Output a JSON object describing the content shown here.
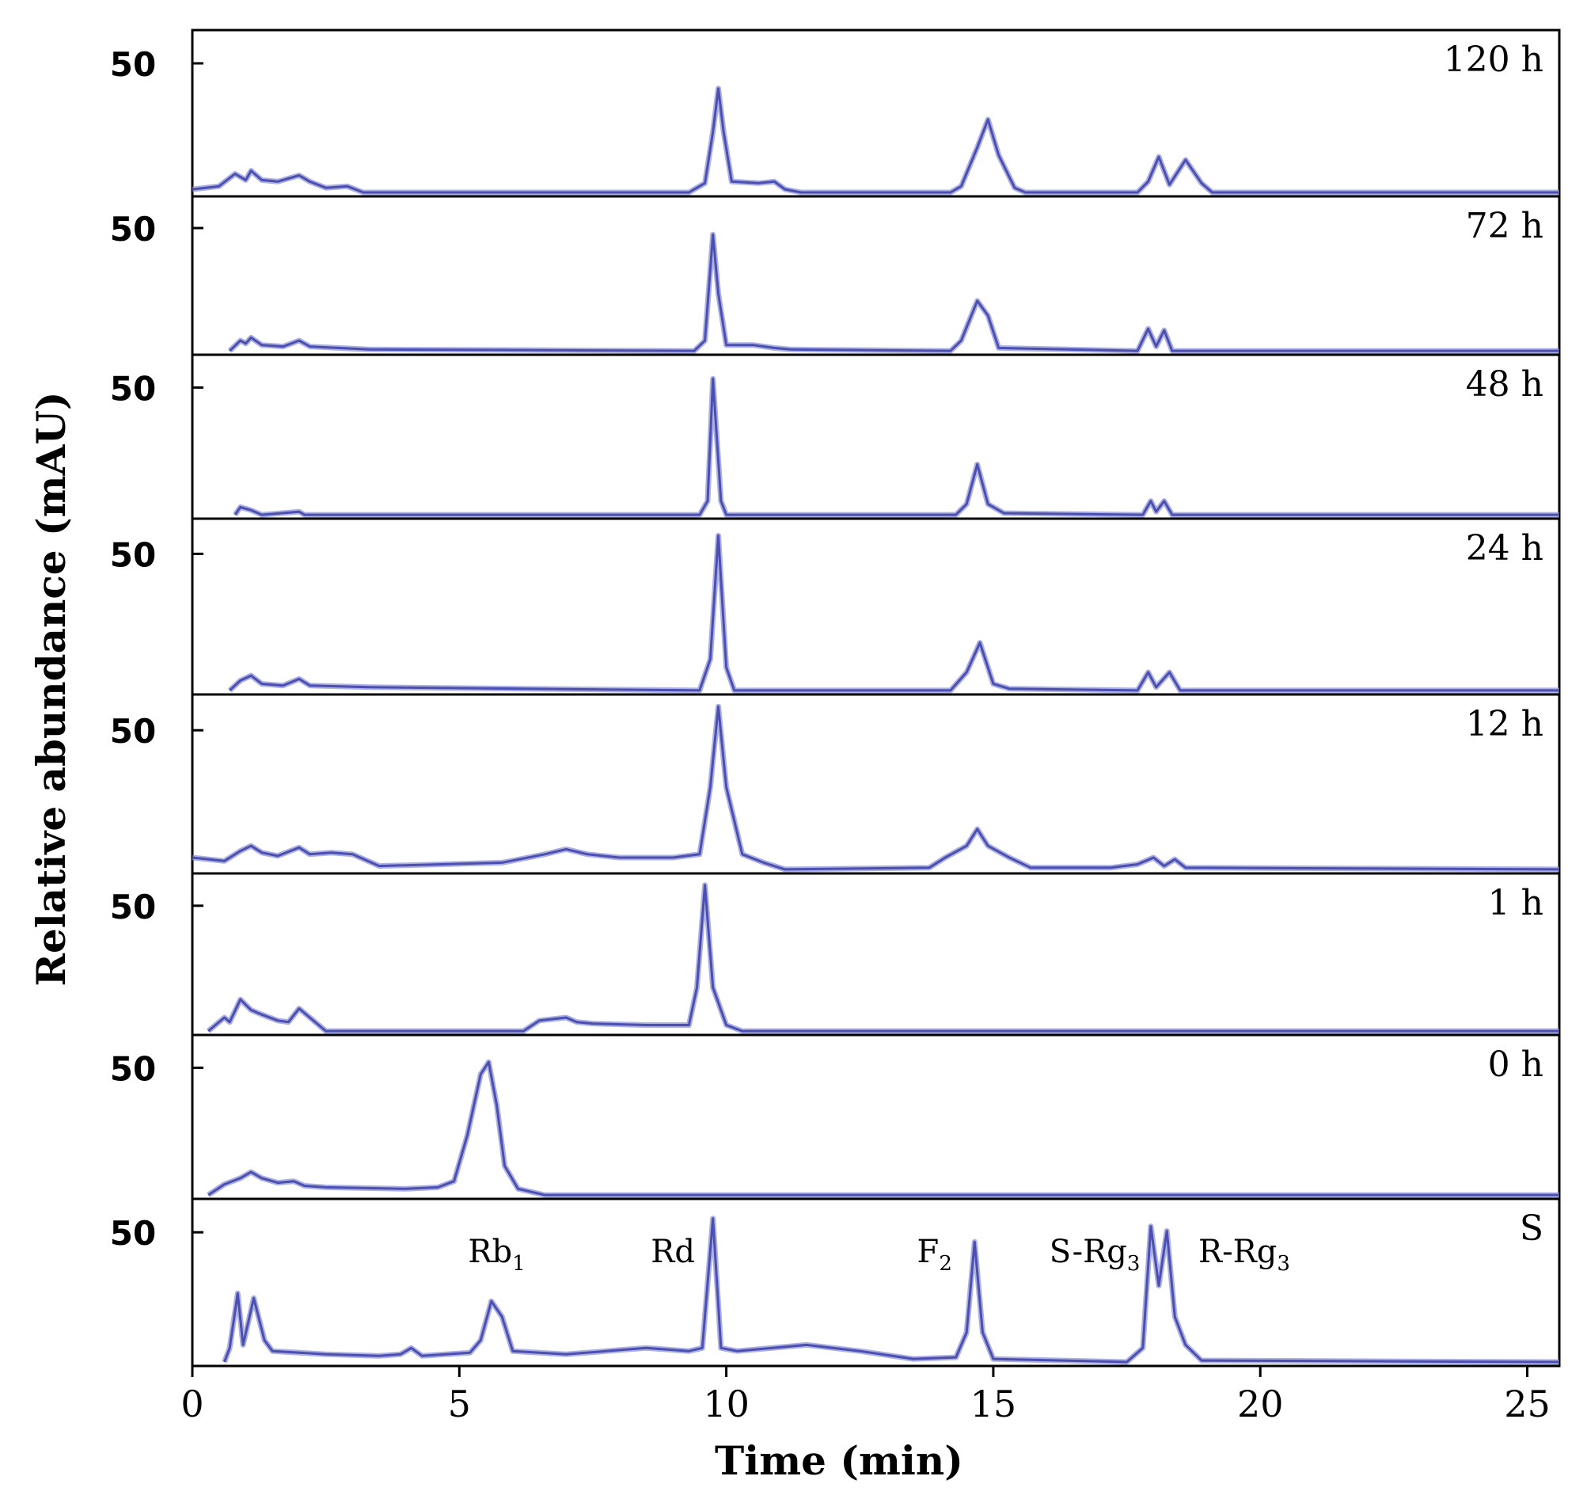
{
  "chart_data": {
    "type": "line",
    "xlabel": "Time (min)",
    "ylabel": "Relative abundance (mAU)",
    "xlim": [
      0,
      25.6
    ],
    "xticks": [
      0,
      5,
      10,
      15,
      20,
      25
    ],
    "ytick_label": "50",
    "colors": {
      "trace": "#4a4fb0",
      "trace_light": "#8a8fd6",
      "dark": "#11134a",
      "frame": "#000000"
    },
    "peak_labels": [
      {
        "text": "Rb",
        "sub": "1",
        "x": 5.7
      },
      {
        "text": "Rd",
        "sub": "",
        "x": 9.0
      },
      {
        "text": "F",
        "sub": "2",
        "x": 13.9
      },
      {
        "text": "S-Rg",
        "sub": "3",
        "x": 16.9
      },
      {
        "text": "R-Rg",
        "sub": "3",
        "x": 19.7
      }
    ],
    "panels": [
      {
        "label": "120 h",
        "trace": [
          [
            0,
            0.03
          ],
          [
            0.5,
            0.05
          ],
          [
            0.8,
            0.13
          ],
          [
            1.0,
            0.09
          ],
          [
            1.1,
            0.15
          ],
          [
            1.3,
            0.09
          ],
          [
            1.6,
            0.08
          ],
          [
            2.0,
            0.12
          ],
          [
            2.2,
            0.08
          ],
          [
            2.5,
            0.04
          ],
          [
            2.9,
            0.05
          ],
          [
            3.2,
            0.01
          ],
          [
            9.3,
            0.01
          ],
          [
            9.6,
            0.07
          ],
          [
            9.75,
            0.4
          ],
          [
            9.85,
            0.68
          ],
          [
            9.95,
            0.4
          ],
          [
            10.1,
            0.08
          ],
          [
            10.6,
            0.07
          ],
          [
            10.9,
            0.08
          ],
          [
            11.1,
            0.03
          ],
          [
            11.4,
            0.01
          ],
          [
            14.2,
            0.01
          ],
          [
            14.4,
            0.05
          ],
          [
            14.7,
            0.3
          ],
          [
            14.9,
            0.48
          ],
          [
            15.1,
            0.25
          ],
          [
            15.4,
            0.04
          ],
          [
            15.6,
            0.01
          ],
          [
            17.7,
            0.01
          ],
          [
            17.9,
            0.08
          ],
          [
            18.1,
            0.24
          ],
          [
            18.3,
            0.06
          ],
          [
            18.6,
            0.22
          ],
          [
            18.9,
            0.07
          ],
          [
            19.1,
            0.01
          ],
          [
            25.6,
            0.01
          ]
        ]
      },
      {
        "label": "72 h",
        "trace": [
          [
            0.7,
            0.01
          ],
          [
            0.9,
            0.08
          ],
          [
            1.0,
            0.06
          ],
          [
            1.1,
            0.1
          ],
          [
            1.3,
            0.05
          ],
          [
            1.7,
            0.04
          ],
          [
            2.0,
            0.08
          ],
          [
            2.2,
            0.04
          ],
          [
            3.3,
            0.02
          ],
          [
            9.4,
            0.01
          ],
          [
            9.6,
            0.08
          ],
          [
            9.75,
            0.8
          ],
          [
            9.85,
            0.4
          ],
          [
            10.0,
            0.05
          ],
          [
            10.5,
            0.05
          ],
          [
            10.9,
            0.03
          ],
          [
            11.2,
            0.02
          ],
          [
            14.2,
            0.01
          ],
          [
            14.4,
            0.08
          ],
          [
            14.7,
            0.35
          ],
          [
            14.9,
            0.25
          ],
          [
            15.1,
            0.03
          ],
          [
            17.7,
            0.01
          ],
          [
            17.9,
            0.16
          ],
          [
            18.05,
            0.04
          ],
          [
            18.2,
            0.15
          ],
          [
            18.35,
            0.01
          ],
          [
            25.6,
            0.01
          ]
        ]
      },
      {
        "label": "48 h",
        "trace": [
          [
            0.8,
            0.01
          ],
          [
            0.9,
            0.06
          ],
          [
            1.1,
            0.04
          ],
          [
            1.3,
            0.01
          ],
          [
            2.0,
            0.03
          ],
          [
            2.1,
            0.01
          ],
          [
            9.5,
            0.01
          ],
          [
            9.65,
            0.1
          ],
          [
            9.75,
            0.9
          ],
          [
            9.9,
            0.1
          ],
          [
            10.0,
            0.01
          ],
          [
            14.3,
            0.01
          ],
          [
            14.5,
            0.08
          ],
          [
            14.7,
            0.34
          ],
          [
            14.9,
            0.08
          ],
          [
            15.2,
            0.02
          ],
          [
            17.8,
            0.01
          ],
          [
            17.95,
            0.1
          ],
          [
            18.05,
            0.03
          ],
          [
            18.2,
            0.1
          ],
          [
            18.35,
            0.01
          ],
          [
            25.6,
            0.01
          ]
        ]
      },
      {
        "label": "24 h",
        "trace": [
          [
            0.7,
            0.01
          ],
          [
            0.9,
            0.07
          ],
          [
            1.1,
            0.1
          ],
          [
            1.3,
            0.05
          ],
          [
            1.7,
            0.04
          ],
          [
            2.0,
            0.08
          ],
          [
            2.2,
            0.04
          ],
          [
            3.3,
            0.03
          ],
          [
            9.5,
            0.01
          ],
          [
            9.7,
            0.2
          ],
          [
            9.85,
            0.95
          ],
          [
            10.0,
            0.15
          ],
          [
            10.15,
            0.01
          ],
          [
            14.2,
            0.01
          ],
          [
            14.5,
            0.12
          ],
          [
            14.75,
            0.3
          ],
          [
            15.0,
            0.05
          ],
          [
            15.3,
            0.02
          ],
          [
            17.7,
            0.01
          ],
          [
            17.9,
            0.12
          ],
          [
            18.05,
            0.03
          ],
          [
            18.3,
            0.12
          ],
          [
            18.5,
            0.01
          ],
          [
            25.6,
            0.01
          ]
        ]
      },
      {
        "label": "12 h",
        "trace": [
          [
            0,
            0.08
          ],
          [
            0.6,
            0.06
          ],
          [
            0.9,
            0.12
          ],
          [
            1.1,
            0.15
          ],
          [
            1.3,
            0.11
          ],
          [
            1.6,
            0.09
          ],
          [
            2.0,
            0.14
          ],
          [
            2.2,
            0.1
          ],
          [
            2.6,
            0.11
          ],
          [
            3.0,
            0.1
          ],
          [
            3.5,
            0.03
          ],
          [
            5.8,
            0.05
          ],
          [
            6.6,
            0.1
          ],
          [
            7.0,
            0.13
          ],
          [
            7.4,
            0.1
          ],
          [
            8.0,
            0.08
          ],
          [
            9.0,
            0.08
          ],
          [
            9.5,
            0.1
          ],
          [
            9.7,
            0.5
          ],
          [
            9.85,
            0.98
          ],
          [
            10.0,
            0.5
          ],
          [
            10.3,
            0.1
          ],
          [
            10.7,
            0.05
          ],
          [
            11.1,
            0.01
          ],
          [
            13.8,
            0.02
          ],
          [
            14.1,
            0.08
          ],
          [
            14.5,
            0.15
          ],
          [
            14.7,
            0.25
          ],
          [
            14.9,
            0.15
          ],
          [
            15.3,
            0.08
          ],
          [
            15.7,
            0.02
          ],
          [
            17.2,
            0.02
          ],
          [
            17.7,
            0.04
          ],
          [
            18.0,
            0.08
          ],
          [
            18.2,
            0.03
          ],
          [
            18.4,
            0.07
          ],
          [
            18.6,
            0.02
          ],
          [
            25.6,
            0.01
          ]
        ]
      },
      {
        "label": "1 h",
        "trace": [
          [
            0.3,
            0.01
          ],
          [
            0.6,
            0.1
          ],
          [
            0.7,
            0.07
          ],
          [
            0.9,
            0.22
          ],
          [
            1.1,
            0.15
          ],
          [
            1.3,
            0.12
          ],
          [
            1.6,
            0.08
          ],
          [
            1.8,
            0.07
          ],
          [
            2.0,
            0.16
          ],
          [
            2.2,
            0.1
          ],
          [
            2.5,
            0.01
          ],
          [
            6.2,
            0.01
          ],
          [
            6.5,
            0.08
          ],
          [
            7.0,
            0.1
          ],
          [
            7.2,
            0.07
          ],
          [
            7.5,
            0.06
          ],
          [
            8.5,
            0.05
          ],
          [
            9.3,
            0.05
          ],
          [
            9.45,
            0.3
          ],
          [
            9.6,
            0.98
          ],
          [
            9.75,
            0.3
          ],
          [
            10.0,
            0.05
          ],
          [
            10.3,
            0.01
          ],
          [
            25.6,
            0.01
          ]
        ]
      },
      {
        "label": "0 h",
        "trace": [
          [
            0.3,
            0.01
          ],
          [
            0.6,
            0.08
          ],
          [
            0.9,
            0.12
          ],
          [
            1.1,
            0.16
          ],
          [
            1.3,
            0.12
          ],
          [
            1.6,
            0.09
          ],
          [
            1.9,
            0.1
          ],
          [
            2.1,
            0.07
          ],
          [
            2.5,
            0.06
          ],
          [
            4.0,
            0.05
          ],
          [
            4.6,
            0.06
          ],
          [
            4.9,
            0.1
          ],
          [
            5.15,
            0.4
          ],
          [
            5.4,
            0.8
          ],
          [
            5.55,
            0.88
          ],
          [
            5.7,
            0.6
          ],
          [
            5.85,
            0.2
          ],
          [
            6.1,
            0.05
          ],
          [
            6.6,
            0.01
          ],
          [
            25.6,
            0.01
          ]
        ]
      },
      {
        "label": "S",
        "trace": [
          [
            0.6,
            0.01
          ],
          [
            0.7,
            0.1
          ],
          [
            0.85,
            0.45
          ],
          [
            0.95,
            0.12
          ],
          [
            1.15,
            0.42
          ],
          [
            1.35,
            0.15
          ],
          [
            1.5,
            0.08
          ],
          [
            2.5,
            0.06
          ],
          [
            3.5,
            0.05
          ],
          [
            3.9,
            0.06
          ],
          [
            4.1,
            0.1
          ],
          [
            4.3,
            0.05
          ],
          [
            5.2,
            0.07
          ],
          [
            5.4,
            0.15
          ],
          [
            5.6,
            0.4
          ],
          [
            5.8,
            0.3
          ],
          [
            6.0,
            0.08
          ],
          [
            7.0,
            0.06
          ],
          [
            8.5,
            0.1
          ],
          [
            9.3,
            0.08
          ],
          [
            9.55,
            0.1
          ],
          [
            9.75,
            0.93
          ],
          [
            9.9,
            0.1
          ],
          [
            10.2,
            0.08
          ],
          [
            11.5,
            0.12
          ],
          [
            12.5,
            0.08
          ],
          [
            13.5,
            0.03
          ],
          [
            14.3,
            0.04
          ],
          [
            14.5,
            0.2
          ],
          [
            14.65,
            0.78
          ],
          [
            14.8,
            0.2
          ],
          [
            15.0,
            0.03
          ],
          [
            17.5,
            0.01
          ],
          [
            17.8,
            0.1
          ],
          [
            17.95,
            0.88
          ],
          [
            18.1,
            0.5
          ],
          [
            18.25,
            0.85
          ],
          [
            18.4,
            0.3
          ],
          [
            18.6,
            0.12
          ],
          [
            18.9,
            0.02
          ],
          [
            25.6,
            0.01
          ]
        ]
      }
    ]
  }
}
